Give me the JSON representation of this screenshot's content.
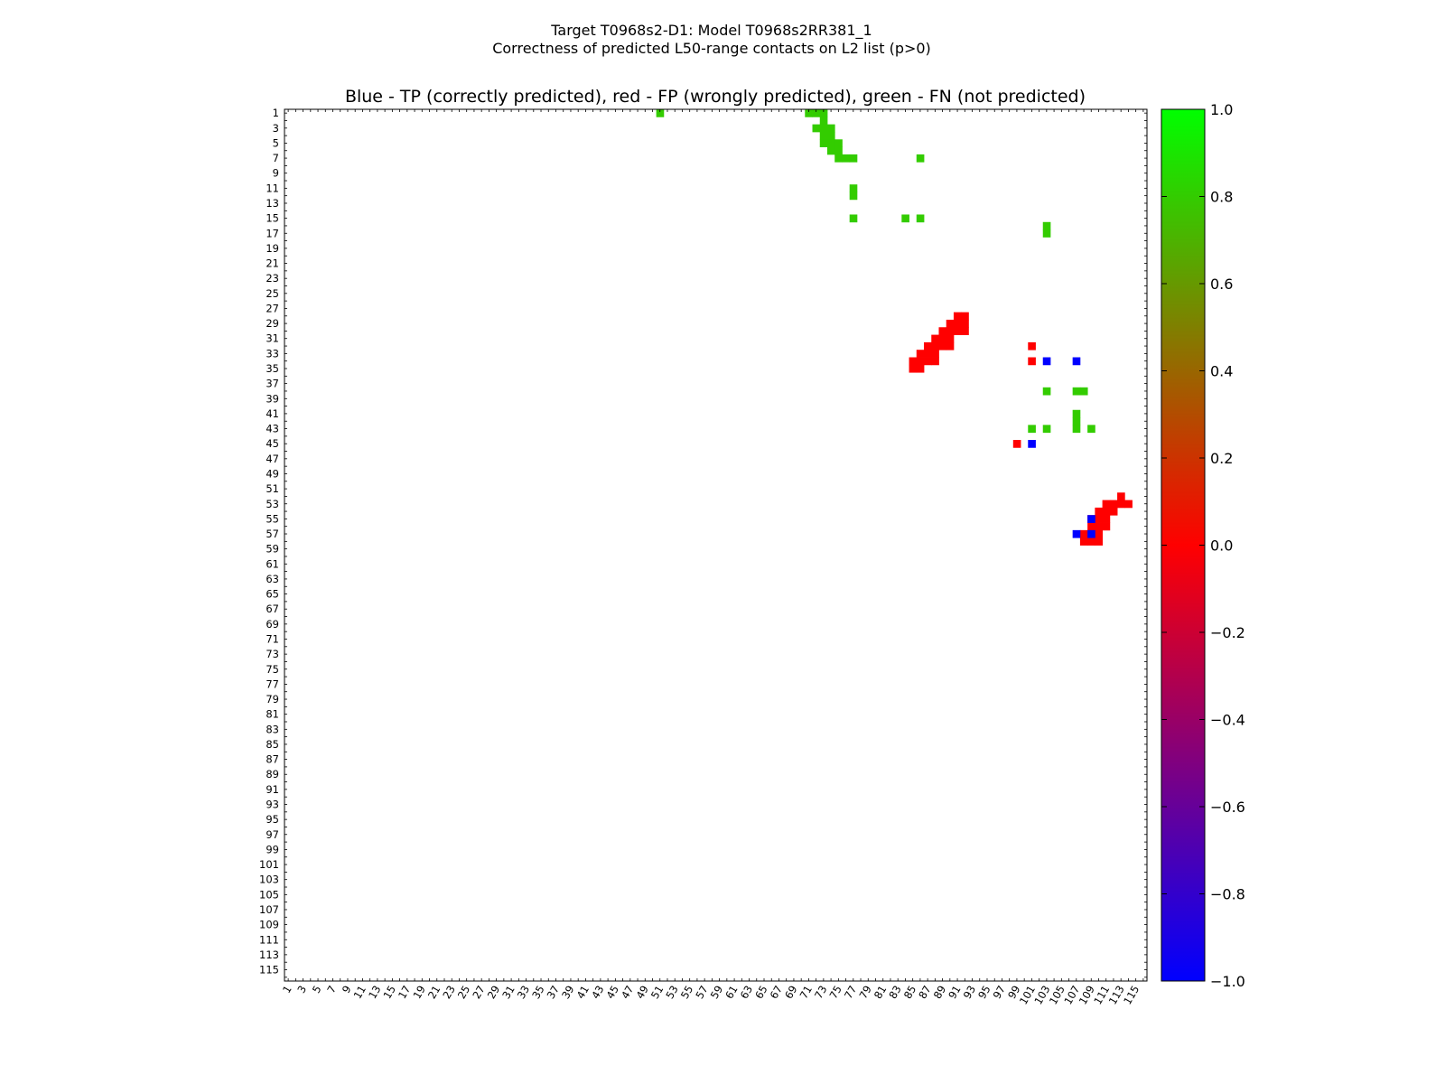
{
  "figure": {
    "title_line1": "Target T0968s2-D1: Model T0968s2RR381_1",
    "title_line2": "Correctness of predicted L50-range contacts on L2 list (p>0)"
  },
  "chart_data": {
    "type": "heatmap",
    "title": "Blue - TP (correctly predicted), red - FP (wrongly predicted), green - FN (not predicted)",
    "xlabel": "",
    "ylabel": "",
    "n": 116,
    "xlim": [
      1,
      116
    ],
    "ylim": [
      1,
      116
    ],
    "x_ticks": [
      1,
      3,
      5,
      7,
      9,
      11,
      13,
      15,
      17,
      19,
      21,
      23,
      25,
      27,
      29,
      31,
      33,
      35,
      37,
      39,
      41,
      43,
      45,
      47,
      49,
      51,
      53,
      55,
      57,
      59,
      61,
      63,
      65,
      67,
      69,
      71,
      73,
      75,
      77,
      79,
      81,
      83,
      85,
      87,
      89,
      91,
      93,
      95,
      97,
      99,
      101,
      103,
      105,
      107,
      109,
      111,
      113,
      115
    ],
    "y_ticks": [
      1,
      3,
      5,
      7,
      9,
      11,
      13,
      15,
      17,
      19,
      21,
      23,
      25,
      27,
      29,
      31,
      33,
      35,
      37,
      39,
      41,
      43,
      45,
      47,
      49,
      51,
      53,
      55,
      57,
      59,
      61,
      63,
      65,
      67,
      69,
      71,
      73,
      75,
      77,
      79,
      81,
      83,
      85,
      87,
      89,
      91,
      93,
      95,
      97,
      99,
      101,
      103,
      105,
      107,
      109,
      111,
      113,
      115
    ],
    "colorbar": {
      "ticks": [
        "1.0",
        "0.8",
        "0.6",
        "0.4",
        "0.2",
        "0.0",
        "−0.2",
        "−0.4",
        "−0.6",
        "−0.8",
        "−1.0"
      ],
      "range": [
        -1,
        1
      ],
      "colors": [
        "#0000ff",
        "#ff0000",
        "#00ff00"
      ]
    },
    "colors": {
      "TP": "#0000ff",
      "FP": "#ff0000",
      "FN": "#33cc00"
    },
    "cells": {
      "FN": [
        [
          51,
          1
        ],
        [
          71,
          1
        ],
        [
          72,
          1
        ],
        [
          73,
          1
        ],
        [
          73,
          2
        ],
        [
          72,
          3
        ],
        [
          73,
          3
        ],
        [
          74,
          3
        ],
        [
          73,
          4
        ],
        [
          74,
          4
        ],
        [
          73,
          5
        ],
        [
          74,
          5
        ],
        [
          75,
          5
        ],
        [
          74,
          6
        ],
        [
          75,
          6
        ],
        [
          75,
          7
        ],
        [
          76,
          7
        ],
        [
          77,
          7
        ],
        [
          86,
          7
        ],
        [
          77,
          11
        ],
        [
          77,
          12
        ],
        [
          77,
          15
        ],
        [
          84,
          15
        ],
        [
          86,
          15
        ],
        [
          103,
          16
        ],
        [
          103,
          17
        ],
        [
          103,
          38
        ],
        [
          107,
          38
        ],
        [
          108,
          38
        ],
        [
          107,
          41
        ],
        [
          107,
          42
        ],
        [
          101,
          43
        ],
        [
          103,
          43
        ],
        [
          107,
          43
        ],
        [
          109,
          43
        ]
      ],
      "FP": [
        [
          91,
          28
        ],
        [
          92,
          28
        ],
        [
          90,
          29
        ],
        [
          91,
          29
        ],
        [
          92,
          29
        ],
        [
          89,
          30
        ],
        [
          90,
          30
        ],
        [
          91,
          30
        ],
        [
          92,
          30
        ],
        [
          88,
          31
        ],
        [
          89,
          31
        ],
        [
          90,
          31
        ],
        [
          87,
          32
        ],
        [
          88,
          32
        ],
        [
          89,
          32
        ],
        [
          90,
          32
        ],
        [
          86,
          33
        ],
        [
          87,
          33
        ],
        [
          88,
          33
        ],
        [
          85,
          34
        ],
        [
          86,
          34
        ],
        [
          87,
          34
        ],
        [
          88,
          34
        ],
        [
          85,
          35
        ],
        [
          86,
          35
        ],
        [
          101,
          32
        ],
        [
          101,
          34
        ],
        [
          99,
          45
        ],
        [
          113,
          52
        ],
        [
          111,
          53
        ],
        [
          112,
          53
        ],
        [
          113,
          53
        ],
        [
          114,
          53
        ],
        [
          110,
          54
        ],
        [
          111,
          54
        ],
        [
          112,
          54
        ],
        [
          109,
          55
        ],
        [
          110,
          55
        ],
        [
          111,
          55
        ],
        [
          109,
          56
        ],
        [
          110,
          56
        ],
        [
          111,
          56
        ],
        [
          108,
          57
        ],
        [
          110,
          57
        ],
        [
          108,
          58
        ],
        [
          109,
          58
        ],
        [
          110,
          58
        ]
      ],
      "TP": [
        [
          103,
          34
        ],
        [
          107,
          34
        ],
        [
          101,
          45
        ],
        [
          109,
          55
        ],
        [
          107,
          57
        ],
        [
          109,
          57
        ]
      ]
    }
  }
}
